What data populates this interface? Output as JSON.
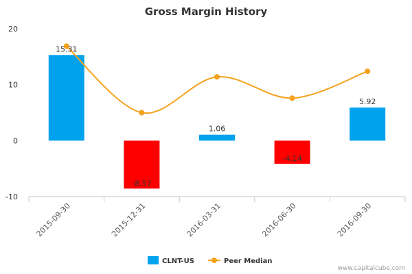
{
  "chart_data": {
    "type": "bar",
    "title": "Gross Margin History",
    "xlabel": "",
    "ylabel": "",
    "ylim": [
      -10,
      20
    ],
    "yticks": [
      -10,
      0,
      10,
      20
    ],
    "categories": [
      "2015-09-30",
      "2015-12-31",
      "2016-03-31",
      "2016-06-30",
      "2016-09-30"
    ],
    "series": [
      {
        "name": "CLNT-US",
        "kind": "bar",
        "values": [
          15.31,
          -8.57,
          1.06,
          -4.14,
          5.92
        ],
        "labels": [
          "15.31",
          "-8.57",
          "1.06",
          "-4.14",
          "5.92"
        ],
        "color_positive": "#00a2ed",
        "color_negative": "#ff0000"
      },
      {
        "name": "Peer Median",
        "kind": "line",
        "values": [
          16.9,
          5.0,
          11.4,
          7.6,
          12.4
        ],
        "color": "#f4a11c"
      }
    ],
    "grid": false,
    "legend_position": "bottom-center"
  },
  "credit": "www.capitalcube.com"
}
